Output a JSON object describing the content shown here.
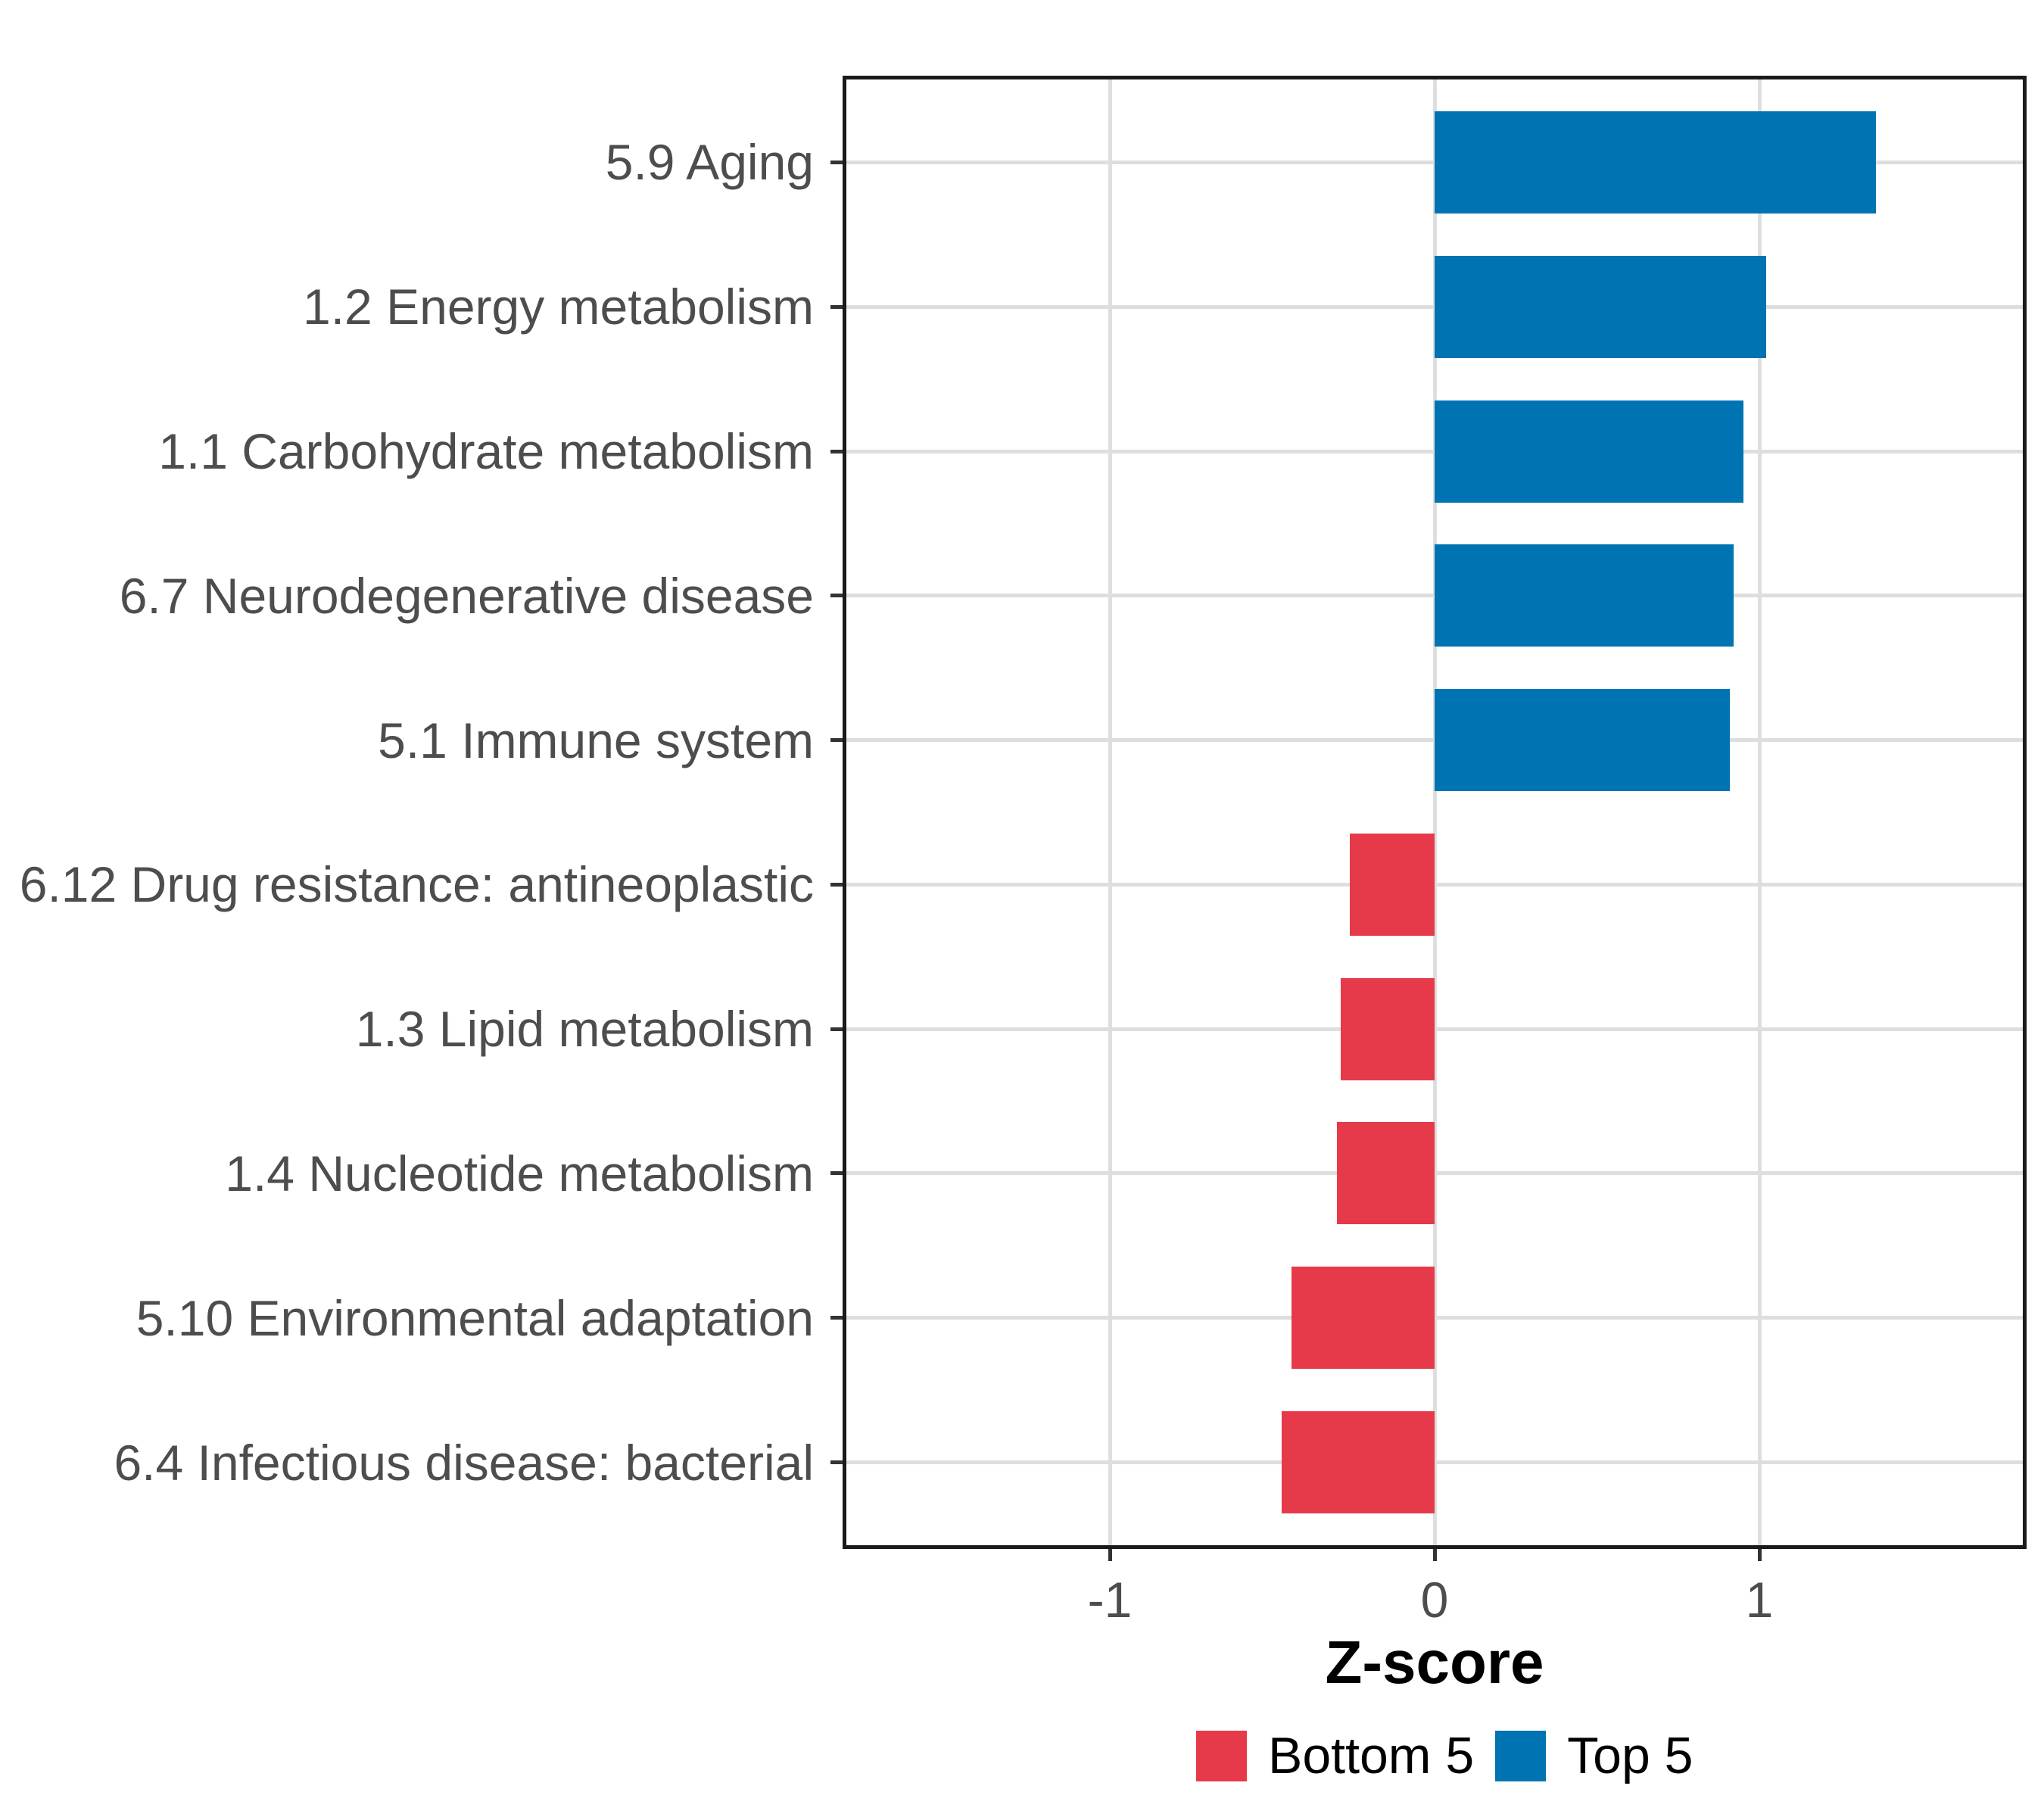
{
  "chart_data": {
    "type": "bar",
    "orientation": "horizontal",
    "title": "",
    "xlabel": "Z-score",
    "ylabel": "",
    "xlim": [
      -1.82,
      1.82
    ],
    "xticks": [
      -1,
      0,
      1
    ],
    "xtick_labels": [
      "-1",
      "0",
      "1"
    ],
    "grid": "major-only",
    "categories": [
      "5.9 Aging",
      "1.2 Energy metabolism",
      "1.1 Carbohydrate metabolism",
      "6.7 Neurodegenerative disease",
      "5.1 Immune system",
      "6.12 Drug resistance: antineoplastic",
      "1.3 Lipid metabolism",
      "1.4 Nucleotide metabolism",
      "5.10 Environmental adaptation",
      "6.4 Infectious disease: bacterial"
    ],
    "values": [
      1.36,
      1.02,
      0.95,
      0.92,
      0.91,
      -0.26,
      -0.29,
      -0.3,
      -0.44,
      -0.47
    ],
    "groups": [
      "Top 5",
      "Top 5",
      "Top 5",
      "Top 5",
      "Top 5",
      "Bottom 5",
      "Bottom 5",
      "Bottom 5",
      "Bottom 5",
      "Bottom 5"
    ],
    "colors": {
      "Top 5": "#0073B2",
      "Bottom 5": "#E6394A"
    },
    "legend": {
      "position": "bottom",
      "entries": [
        {
          "label": "Bottom 5",
          "group": "Bottom 5"
        },
        {
          "label": "Top 5",
          "group": "Top 5"
        }
      ]
    }
  }
}
